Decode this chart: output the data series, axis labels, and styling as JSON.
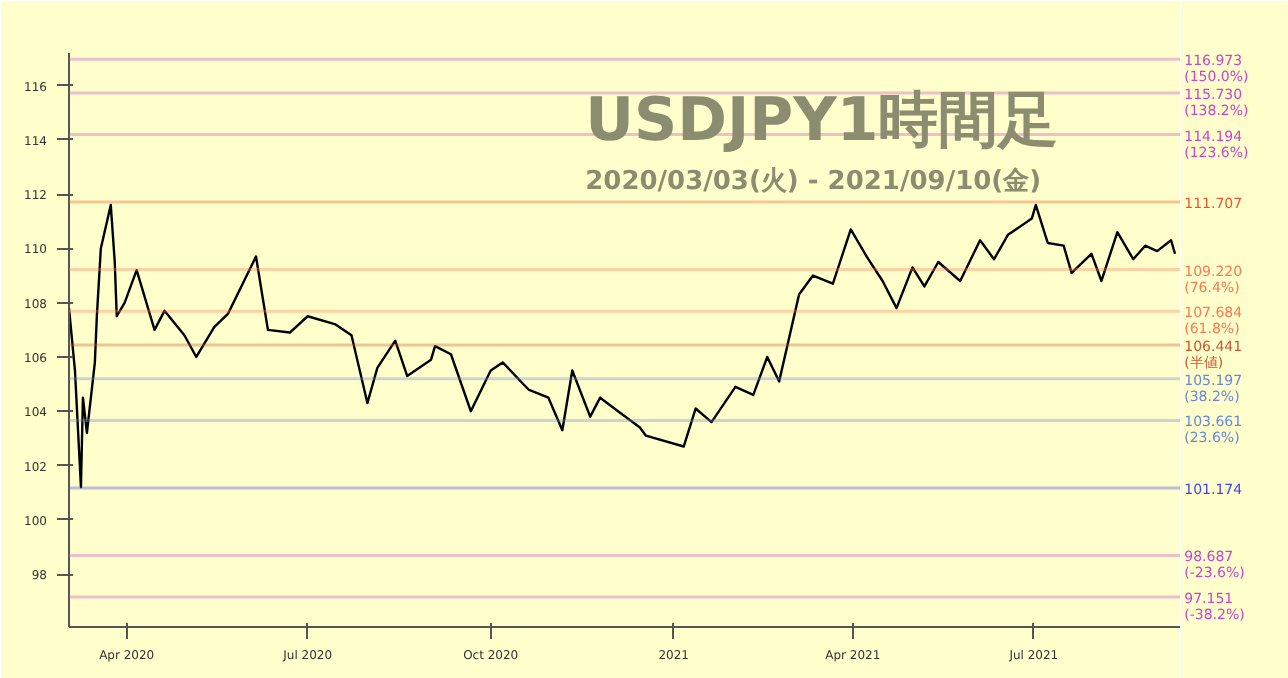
{
  "chart_data": {
    "type": "line",
    "title": "USDJPY1時間足",
    "subtitle": "2020/03/03(火) - 2021/09/10(金)",
    "x": [
      "2020-03-03",
      "2020-03-06",
      "2020-03-09",
      "2020-03-10",
      "2020-03-12",
      "2020-03-16",
      "2020-03-17",
      "2020-03-19",
      "2020-03-24",
      "2020-03-26",
      "2020-03-27",
      "2020-03-31",
      "2020-04-06",
      "2020-04-15",
      "2020-04-20",
      "2020-04-30",
      "2020-05-06",
      "2020-05-15",
      "2020-05-22",
      "2020-06-05",
      "2020-06-11",
      "2020-06-22",
      "2020-07-01",
      "2020-07-15",
      "2020-07-23",
      "2020-07-31",
      "2020-08-05",
      "2020-08-14",
      "2020-08-20",
      "2020-09-01",
      "2020-09-03",
      "2020-09-11",
      "2020-09-21",
      "2020-10-01",
      "2020-10-07",
      "2020-10-20",
      "2020-10-30",
      "2020-11-06",
      "2020-11-11",
      "2020-11-20",
      "2020-11-25",
      "2020-12-04",
      "2020-12-15",
      "2020-12-18",
      "2021-01-06",
      "2021-01-12",
      "2021-01-20",
      "2021-02-01",
      "2021-02-10",
      "2021-02-17",
      "2021-02-23",
      "2021-03-05",
      "2021-03-12",
      "2021-03-22",
      "2021-03-31",
      "2021-04-08",
      "2021-04-16",
      "2021-04-23",
      "2021-05-01",
      "2021-05-07",
      "2021-05-14",
      "2021-05-25",
      "2021-06-04",
      "2021-06-11",
      "2021-06-18",
      "2021-06-30",
      "2021-07-02",
      "2021-07-08",
      "2021-07-16",
      "2021-07-20",
      "2021-07-30",
      "2021-08-04",
      "2021-08-12",
      "2021-08-20",
      "2021-08-26",
      "2021-09-01",
      "2021-09-08",
      "2021-09-10"
    ],
    "series": [
      {
        "color": "#000000",
        "values": [
          107.8,
          105.5,
          101.2,
          104.5,
          103.2,
          105.8,
          107.5,
          110.0,
          111.6,
          109.5,
          107.5,
          108.0,
          109.2,
          107.0,
          107.7,
          106.8,
          106.0,
          107.1,
          107.6,
          109.7,
          107.0,
          106.9,
          107.5,
          107.2,
          106.8,
          104.3,
          105.6,
          106.6,
          105.3,
          105.9,
          106.4,
          106.1,
          104.0,
          105.5,
          105.8,
          104.8,
          104.5,
          103.3,
          105.5,
          103.8,
          104.5,
          104.0,
          103.4,
          103.1,
          102.7,
          104.1,
          103.6,
          104.9,
          104.6,
          106.0,
          105.1,
          108.3,
          109.0,
          108.7,
          110.7,
          109.7,
          108.8,
          107.8,
          109.3,
          108.6,
          109.5,
          108.8,
          110.3,
          109.6,
          110.5,
          111.1,
          111.6,
          110.2,
          110.1,
          109.1,
          109.8,
          108.8,
          110.6,
          109.6,
          110.1,
          109.9,
          110.3,
          109.8
        ]
      }
    ],
    "xlim": [
      "2020-03-03",
      "2021-09-13"
    ],
    "xticks": [
      {
        "value": "2020-04-01",
        "label": "Apr 2020"
      },
      {
        "value": "2020-07-01",
        "label": "Jul 2020"
      },
      {
        "value": "2020-10-01",
        "label": "Oct 2020"
      },
      {
        "value": "2021-01-01",
        "label": "2021"
      },
      {
        "value": "2021-04-01",
        "label": "Apr 2021"
      },
      {
        "value": "2021-07-01",
        "label": "Jul 2021"
      }
    ],
    "ylim": [
      96.05,
      117.2
    ],
    "yticks": [
      98,
      100,
      102,
      104,
      106,
      108,
      110,
      112,
      114,
      116
    ],
    "grid": false,
    "ref_lines": [
      {
        "axis": "y",
        "value": 116.973,
        "label": "116.973\n(150.0%)",
        "color": "#cc44cc"
      },
      {
        "axis": "y",
        "value": 115.73,
        "label": "115.730\n(138.2%)",
        "color": "#cc44cc"
      },
      {
        "axis": "y",
        "value": 114.194,
        "label": "114.194\n(123.6%)",
        "color": "#cc44cc"
      },
      {
        "axis": "y",
        "value": 111.707,
        "label": "111.707",
        "color": "#ee5533"
      },
      {
        "axis": "y",
        "value": 109.22,
        "label": "109.220\n(76.4%)",
        "color": "#ff7755"
      },
      {
        "axis": "y",
        "value": 107.684,
        "label": "107.684\n(61.8%)",
        "color": "#ff7755"
      },
      {
        "axis": "y",
        "value": 106.441,
        "label": "106.441\n(半値)",
        "color": "#cc5533"
      },
      {
        "axis": "y",
        "value": 105.197,
        "label": "105.197\n(38.2%)",
        "color": "#6688dd"
      },
      {
        "axis": "y",
        "value": 103.661,
        "label": "103.661\n(23.6%)",
        "color": "#6688dd"
      },
      {
        "axis": "y",
        "value": 101.174,
        "label": "101.174",
        "color": "#4444ee"
      },
      {
        "axis": "y",
        "value": 98.687,
        "label": "98.687\n(-23.6%)",
        "color": "#cc44cc"
      },
      {
        "axis": "y",
        "value": 97.151,
        "label": "97.151\n(-38.2%)",
        "color": "#cc44cc"
      }
    ]
  }
}
